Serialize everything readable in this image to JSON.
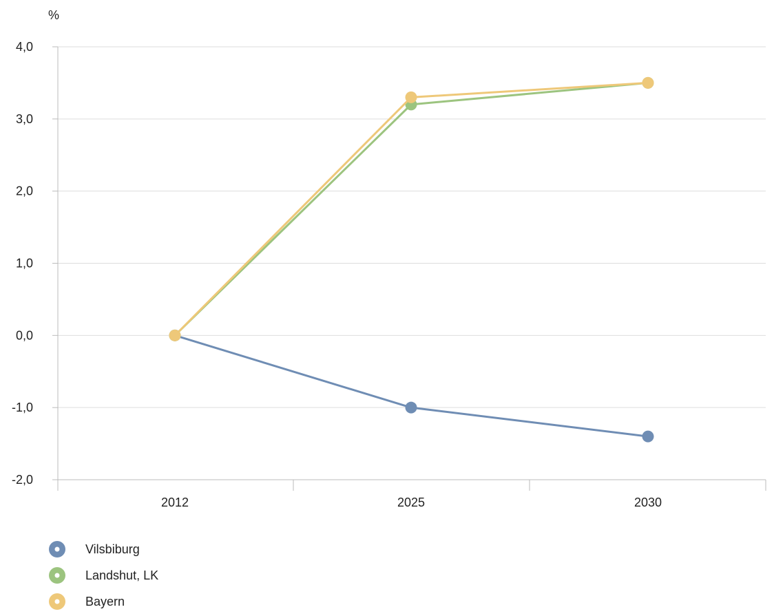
{
  "chart_data": {
    "type": "line",
    "ylabel": "%",
    "categories": [
      "2012",
      "2025",
      "2030"
    ],
    "ylim": [
      -2.0,
      4.0
    ],
    "yticks": [
      {
        "value": 4.0,
        "label": "4,0"
      },
      {
        "value": 3.0,
        "label": "3,0"
      },
      {
        "value": 2.0,
        "label": "2,0"
      },
      {
        "value": 1.0,
        "label": "1,0"
      },
      {
        "value": 0.0,
        "label": "0,0"
      },
      {
        "value": -1.0,
        "label": "-1,0"
      },
      {
        "value": -2.0,
        "label": "-2,0"
      }
    ],
    "grid": true,
    "legend_position": "bottom-left",
    "series": [
      {
        "name": "Vilsbiburg",
        "values": [
          0.0,
          -1.0,
          -1.4
        ],
        "color": "#6f8db4"
      },
      {
        "name": "Landshut, LK",
        "values": [
          0.0,
          3.2,
          3.5
        ],
        "color": "#9cc47f"
      },
      {
        "name": "Bayern",
        "values": [
          0.0,
          3.3,
          3.5
        ],
        "color": "#eec879"
      }
    ]
  }
}
